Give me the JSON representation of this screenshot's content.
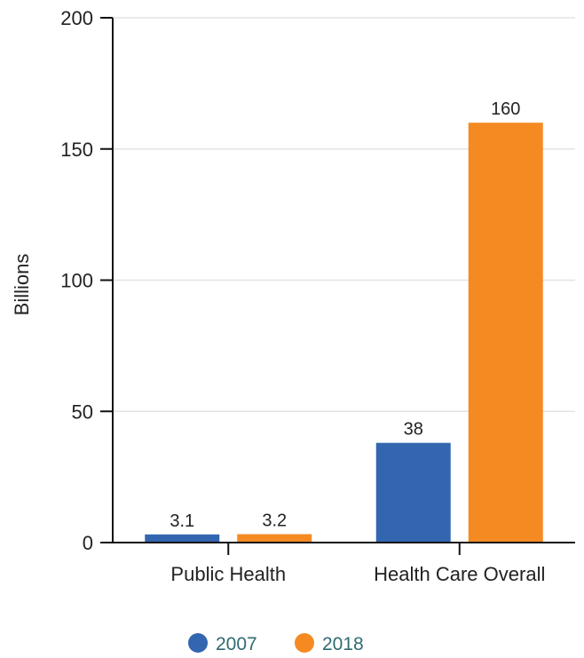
{
  "chart_data": {
    "type": "bar",
    "title": "",
    "xlabel": "",
    "ylabel": "Billions",
    "ylim": [
      0,
      200
    ],
    "yticks": [
      0,
      50,
      100,
      150,
      200
    ],
    "grid": true,
    "legend_position": "bottom-center",
    "categories": [
      "Public Health",
      "Health Care Overall"
    ],
    "series": [
      {
        "name": "2007",
        "color": "#3366B0",
        "values": [
          3.1,
          38
        ],
        "labels": [
          "3.1",
          "38"
        ]
      },
      {
        "name": "2018",
        "color": "#F58A22",
        "values": [
          3.2,
          160
        ],
        "labels": [
          "3.2",
          "160"
        ]
      }
    ]
  }
}
